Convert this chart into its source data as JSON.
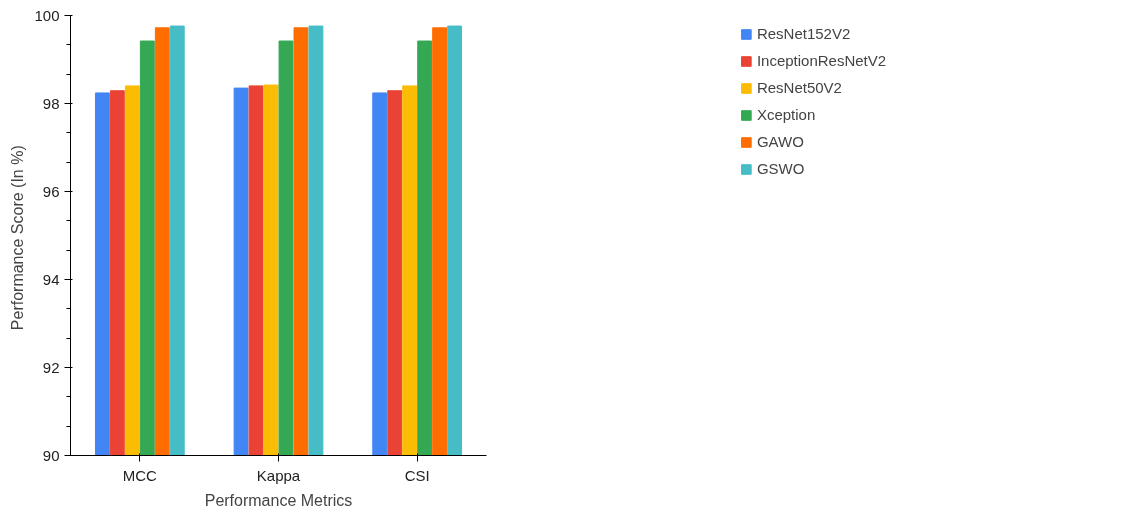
{
  "chart_data": {
    "type": "bar",
    "xlabel": "Performance Metrics",
    "ylabel": "Performance  Score (In %)",
    "categories": [
      "MCC",
      "Kappa",
      "CSI"
    ],
    "series": [
      {
        "name": "ResNet152V2",
        "color": "#4285f4",
        "values": [
          98.24,
          98.35,
          98.24
        ]
      },
      {
        "name": "InceptionResNetV2",
        "color": "#ea4335",
        "values": [
          98.29,
          98.4,
          98.29
        ]
      },
      {
        "name": "ResNet50V2",
        "color": "#fbbc04",
        "values": [
          98.4,
          98.42,
          98.4
        ]
      },
      {
        "name": "Xception",
        "color": "#34a853",
        "values": [
          99.42,
          99.42,
          99.42
        ]
      },
      {
        "name": "GAWO",
        "color": "#ff6d01",
        "values": [
          99.72,
          99.72,
          99.72
        ]
      },
      {
        "name": "GSWO",
        "color": "#46bdc6",
        "values": [
          99.76,
          99.76,
          99.76
        ]
      }
    ],
    "ylim": [
      90,
      100
    ],
    "yticks": [
      90,
      92,
      94,
      96,
      98,
      100
    ],
    "grid": false,
    "legend": "top right"
  }
}
